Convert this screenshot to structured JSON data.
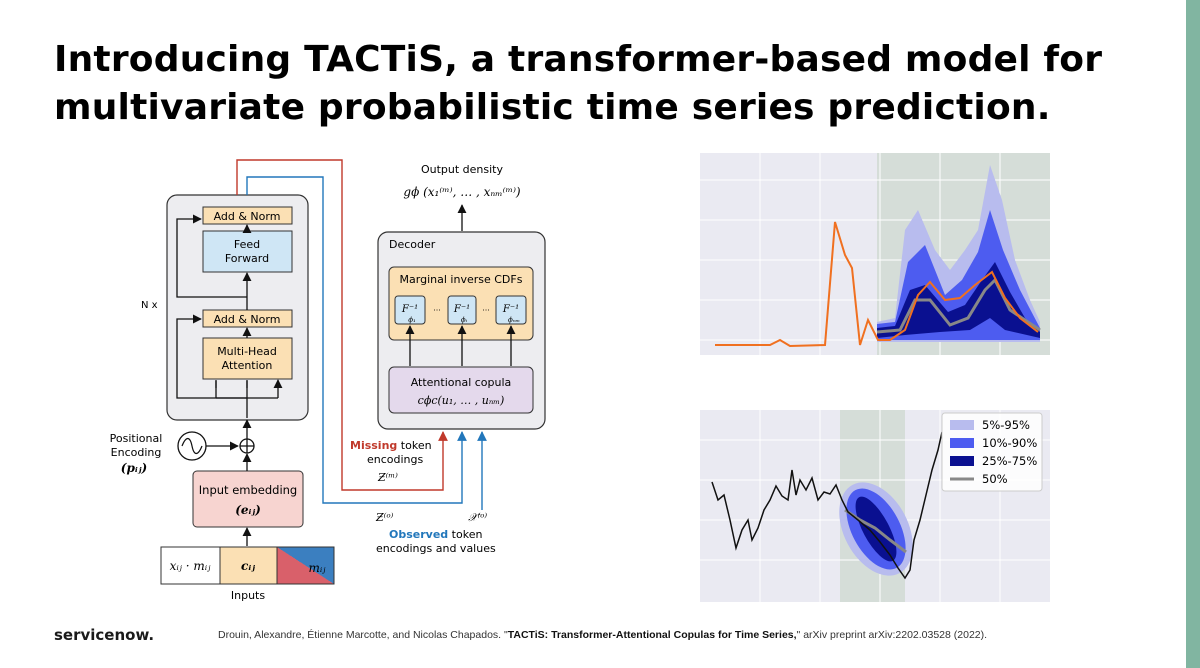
{
  "slide": {
    "title_line1": "Introducing TACTiS, a transformer-based model for",
    "title_line2": "multivariate probabilistic time series prediction.",
    "logo": "servicenow.",
    "ref_authors": "Drouin, Alexandre, Étienne Marcotte, and Nicolas Chapados. \"",
    "ref_title": "TACTiS: Transformer-Attentional Copulas for Time Series,",
    "ref_tail": "\" arXiv preprint arXiv:2202.03528 (2022).",
    "accent_color": "#81b5a1"
  },
  "diagram": {
    "output_density": "Output density",
    "output_formula": "gϕ (x₁⁽ᵐ⁾, … , xₙₘ⁽ᵐ⁾)",
    "encoder": {
      "add_norm": "Add & Norm",
      "feed_forward_1": "Feed",
      "feed_forward_2": "Forward",
      "multi_head_1": "Multi-Head",
      "multi_head_2": "Attention",
      "repeat": "N x"
    },
    "positional_1": "Positional",
    "positional_2": "Encoding",
    "positional_3": "(pᵢⱼ)",
    "input_embedding": "Input embedding",
    "input_embedding_sym": "(eᵢⱼ)",
    "inputs": {
      "x_m": "xᵢⱼ · mᵢⱼ",
      "c": "cᵢⱼ",
      "m": "mᵢⱼ",
      "label": "Inputs"
    },
    "decoder": {
      "label": "Decoder",
      "marginal": "Marginal inverse CDFs",
      "f1": "F⁻¹",
      "f1_sub": "ϕ₁",
      "fi_sub": "ϕᵢ",
      "fn_sub": "ϕₙₘ",
      "dots": "···",
      "copula": "Attentional copula",
      "copula_formula": "cϕc(u₁, … , uₙₘ)"
    },
    "missing_1": "Missing",
    "missing_2": " token",
    "missing_3": "encodings",
    "missing_sym": "Ƶ⁽ᵐ⁾",
    "observed_sym_z": "Ƶ⁽ᵒ⁾",
    "observed_sym_x": "𝒳⁽ᵒ⁾",
    "observed_1": "Observed",
    "observed_2": " token",
    "observed_3": "encodings and values",
    "colors": {
      "missing": "#c0392b",
      "observed": "#2277bb",
      "orange_box": "#fbe0b4",
      "blue_box": "#cfe6f5",
      "pink_box": "#f7d4d0"
    }
  },
  "legend": {
    "items": [
      "5%-95%",
      "10%-90%",
      "25%-75%",
      "50%"
    ],
    "colors": [
      "#b8bcee",
      "#4d5cf0",
      "#0a1090",
      "#888888"
    ]
  }
}
